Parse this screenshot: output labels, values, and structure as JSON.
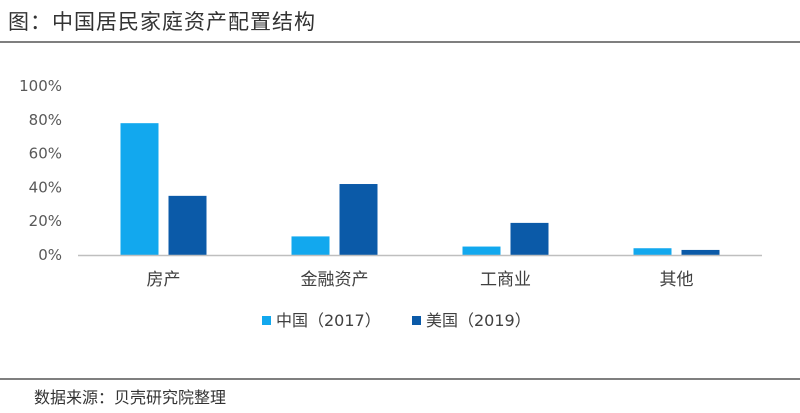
{
  "figure_title": "图：中国居民家庭资产配置结构",
  "source": "数据来源：贝壳研究院整理",
  "colors": {
    "china": "#12a8ee",
    "us": "#0b5aa8",
    "axis": "#bfbfbf"
  },
  "chart_data": {
    "type": "bar",
    "categories": [
      "房产",
      "金融资产",
      "工商业",
      "其他"
    ],
    "series": [
      {
        "name": "中国（2017）",
        "values": [
          78,
          11,
          5,
          4
        ]
      },
      {
        "name": "美国（2019）",
        "values": [
          35,
          42,
          19,
          3
        ]
      }
    ],
    "yticks": [
      "0%",
      "20%",
      "40%",
      "60%",
      "80%",
      "100%"
    ],
    "ylim": [
      0,
      100
    ],
    "legend_position": "bottom-center",
    "grid": false
  }
}
